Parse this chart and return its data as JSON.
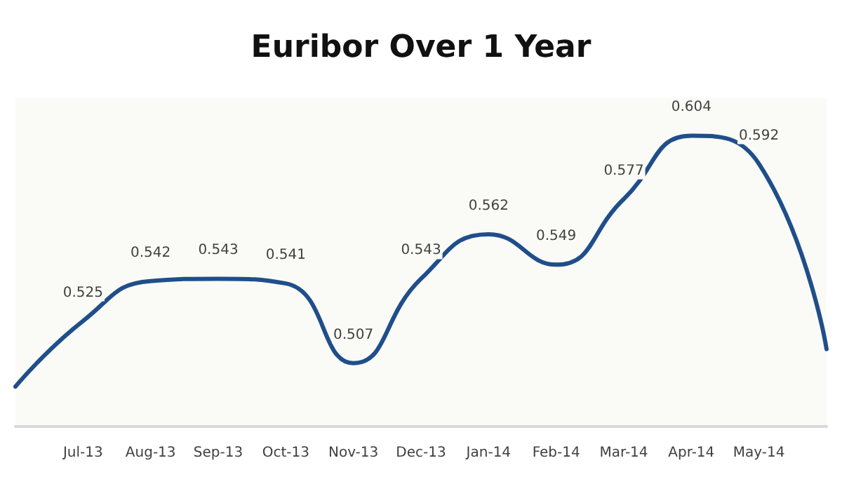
{
  "chart_data": {
    "type": "line",
    "title": "Euribor Over 1 Year",
    "categories": [
      null,
      "Jul-13",
      "Aug-13",
      "Sep-13",
      "Oct-13",
      "Nov-13",
      "Dec-13",
      "Jan-14",
      "Feb-14",
      "Mar-14",
      "Apr-14",
      "May-14",
      null
    ],
    "series": [
      {
        "color": "#1f4e8a",
        "values": [
          0.497,
          0.525,
          0.542,
          0.543,
          0.541,
          0.507,
          0.543,
          0.562,
          0.549,
          0.577,
          0.604,
          0.592,
          0.513
        ],
        "value_labels": [
          null,
          "0.525",
          "0.542",
          "0.543",
          "0.541",
          "0.507",
          "0.543",
          "0.562",
          "0.549",
          "0.577",
          "0.604",
          "0.592",
          null
        ]
      }
    ],
    "grid": false,
    "marker": "none",
    "line_style": "solid"
  }
}
